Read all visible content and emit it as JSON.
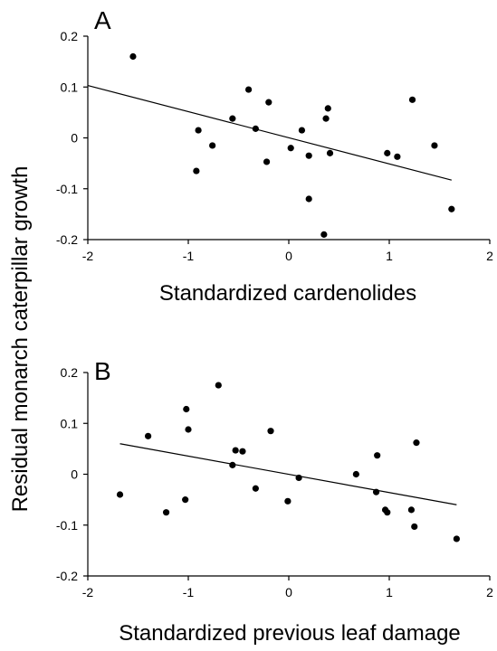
{
  "ylabel": "Residual monarch caterpillar growth",
  "chart_data": [
    {
      "type": "scatter",
      "panel_label": "A",
      "xlabel": "Standardized cardenolides",
      "xlim": [
        -2,
        2
      ],
      "ylim": [
        -0.2,
        0.2
      ],
      "xticks": [
        -2,
        -1,
        0,
        1,
        2
      ],
      "yticks": [
        -0.2,
        -0.1,
        0,
        0.1,
        0.2
      ],
      "xtick_labels": [
        "-2",
        "-1",
        "0",
        "1",
        "2"
      ],
      "ytick_labels": [
        "-0.2",
        "-0.1",
        "0",
        "0.1",
        "0.2"
      ],
      "points": [
        {
          "x": -1.55,
          "y": 0.16
        },
        {
          "x": -0.9,
          "y": 0.015
        },
        {
          "x": -0.92,
          "y": -0.065
        },
        {
          "x": -0.76,
          "y": -0.015
        },
        {
          "x": -0.56,
          "y": 0.038
        },
        {
          "x": -0.4,
          "y": 0.095
        },
        {
          "x": -0.33,
          "y": 0.018
        },
        {
          "x": -0.2,
          "y": 0.07
        },
        {
          "x": -0.22,
          "y": -0.047
        },
        {
          "x": 0.02,
          "y": -0.02
        },
        {
          "x": 0.13,
          "y": 0.015
        },
        {
          "x": 0.2,
          "y": -0.035
        },
        {
          "x": 0.2,
          "y": -0.12
        },
        {
          "x": 0.37,
          "y": 0.038
        },
        {
          "x": 0.39,
          "y": 0.058
        },
        {
          "x": 0.41,
          "y": -0.03
        },
        {
          "x": 0.35,
          "y": -0.19
        },
        {
          "x": 0.98,
          "y": -0.03
        },
        {
          "x": 1.08,
          "y": -0.037
        },
        {
          "x": 1.23,
          "y": 0.075
        },
        {
          "x": 1.45,
          "y": -0.015
        },
        {
          "x": 1.62,
          "y": -0.14
        }
      ],
      "trendline": {
        "x": [
          -2,
          1.62
        ],
        "y": [
          0.103,
          -0.083
        ]
      },
      "grid": false
    },
    {
      "type": "scatter",
      "panel_label": "B",
      "xlabel": "Standardized previous leaf damage",
      "xlim": [
        -2,
        2
      ],
      "ylim": [
        -0.2,
        0.2
      ],
      "xticks": [
        -2,
        -1,
        0,
        1,
        2
      ],
      "yticks": [
        -0.2,
        -0.1,
        0,
        0.1,
        0.2
      ],
      "xtick_labels": [
        "-2",
        "-1",
        "0",
        "1",
        "2"
      ],
      "ytick_labels": [
        "-0.2",
        "-0.1",
        "0",
        "0.1",
        "0.2"
      ],
      "points": [
        {
          "x": -1.68,
          "y": -0.04
        },
        {
          "x": -1.4,
          "y": 0.075
        },
        {
          "x": -1.22,
          "y": -0.075
        },
        {
          "x": -1.03,
          "y": -0.05
        },
        {
          "x": -1.02,
          "y": 0.128
        },
        {
          "x": -1.0,
          "y": 0.088
        },
        {
          "x": -0.7,
          "y": 0.175
        },
        {
          "x": -0.56,
          "y": 0.018
        },
        {
          "x": -0.53,
          "y": 0.047
        },
        {
          "x": -0.46,
          "y": 0.045
        },
        {
          "x": -0.33,
          "y": -0.028
        },
        {
          "x": -0.18,
          "y": 0.085
        },
        {
          "x": -0.01,
          "y": -0.053
        },
        {
          "x": 0.1,
          "y": -0.007
        },
        {
          "x": 0.67,
          "y": 0.0
        },
        {
          "x": 0.87,
          "y": -0.035
        },
        {
          "x": 0.88,
          "y": 0.037
        },
        {
          "x": 0.96,
          "y": -0.07
        },
        {
          "x": 0.98,
          "y": -0.075
        },
        {
          "x": 1.22,
          "y": -0.07
        },
        {
          "x": 1.25,
          "y": -0.103
        },
        {
          "x": 1.27,
          "y": 0.062
        },
        {
          "x": 1.67,
          "y": -0.127
        }
      ],
      "trendline": {
        "x": [
          -1.68,
          1.67
        ],
        "y": [
          0.06,
          -0.06
        ]
      },
      "grid": false
    }
  ]
}
